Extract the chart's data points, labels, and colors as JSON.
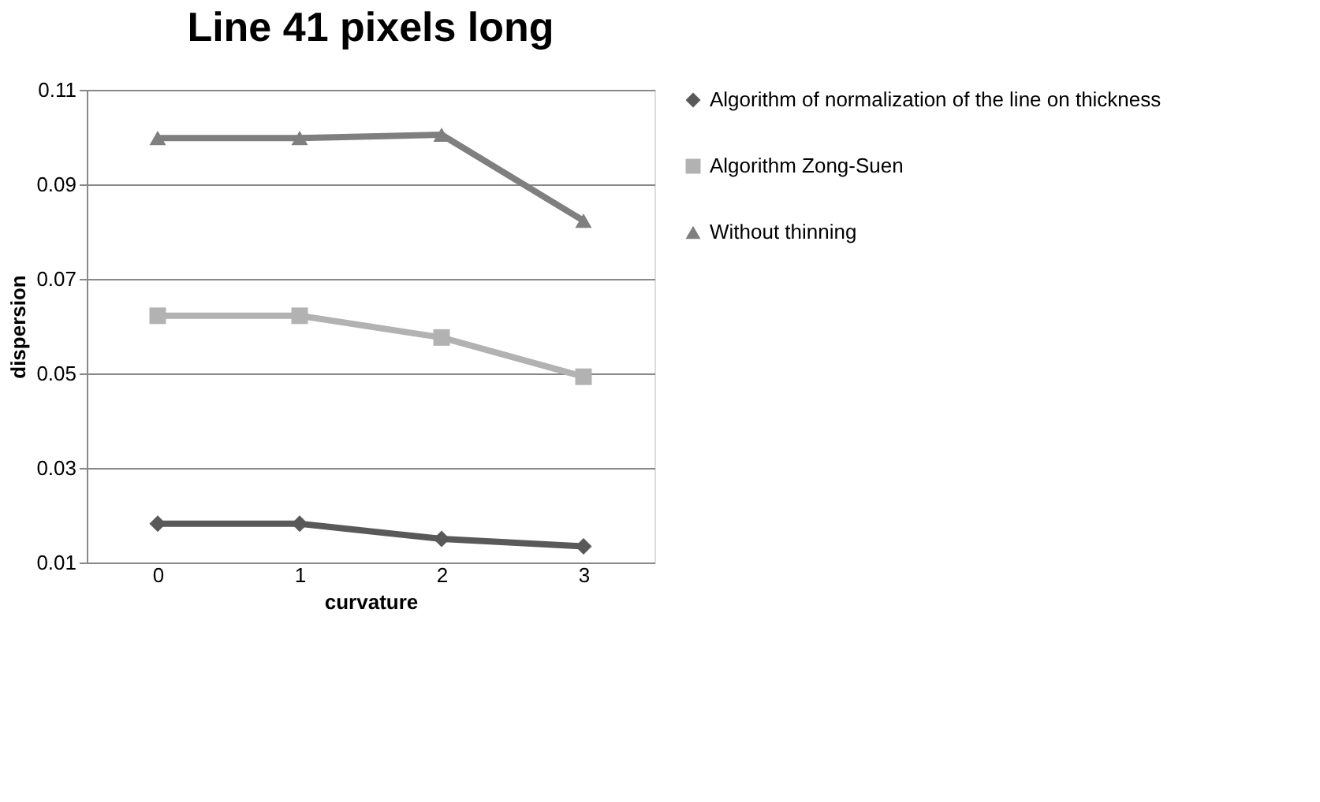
{
  "chart_data": {
    "type": "line",
    "title": "Line 41 pixels long",
    "xlabel": "curvature",
    "ylabel": "dispersion",
    "categories": [
      "0",
      "1",
      "2",
      "3"
    ],
    "series": [
      {
        "name": "Algorithm of normalization of the line on thickness",
        "color": "#595959",
        "marker": "diamond",
        "values": [
          0.0182,
          0.0182,
          0.015,
          0.0134
        ]
      },
      {
        "name": "Algorithm Zong-Suen",
        "color": "#b2b2b2",
        "marker": "square",
        "values": [
          0.0622,
          0.0622,
          0.0576,
          0.0493
        ]
      },
      {
        "name": "Without thinning",
        "color": "#7f7f7f",
        "marker": "triangle",
        "values": [
          0.0998,
          0.0998,
          0.1005,
          0.0823
        ]
      }
    ],
    "ylim": [
      0.01,
      0.11
    ],
    "yticks": [
      0.01,
      0.03,
      0.05,
      0.07,
      0.09,
      0.11
    ],
    "grid": "y",
    "legend": "right"
  }
}
